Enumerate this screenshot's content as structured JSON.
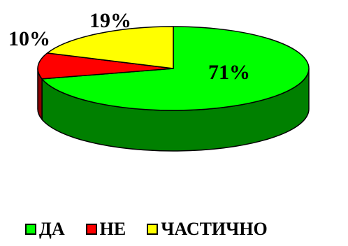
{
  "chart_data": {
    "type": "pie",
    "three_d": true,
    "labels": [
      "ДА",
      "НЕ",
      "ЧАСТИЧНО"
    ],
    "values": [
      71,
      10,
      19
    ],
    "value_labels": [
      "71%",
      "10%",
      "19%"
    ],
    "colors": [
      "#00ff00",
      "#ff0000",
      "#ffff00"
    ],
    "side_colors": [
      "#008000",
      "#8b0000",
      "#9a9a00"
    ],
    "legend_placement": "bottom"
  }
}
